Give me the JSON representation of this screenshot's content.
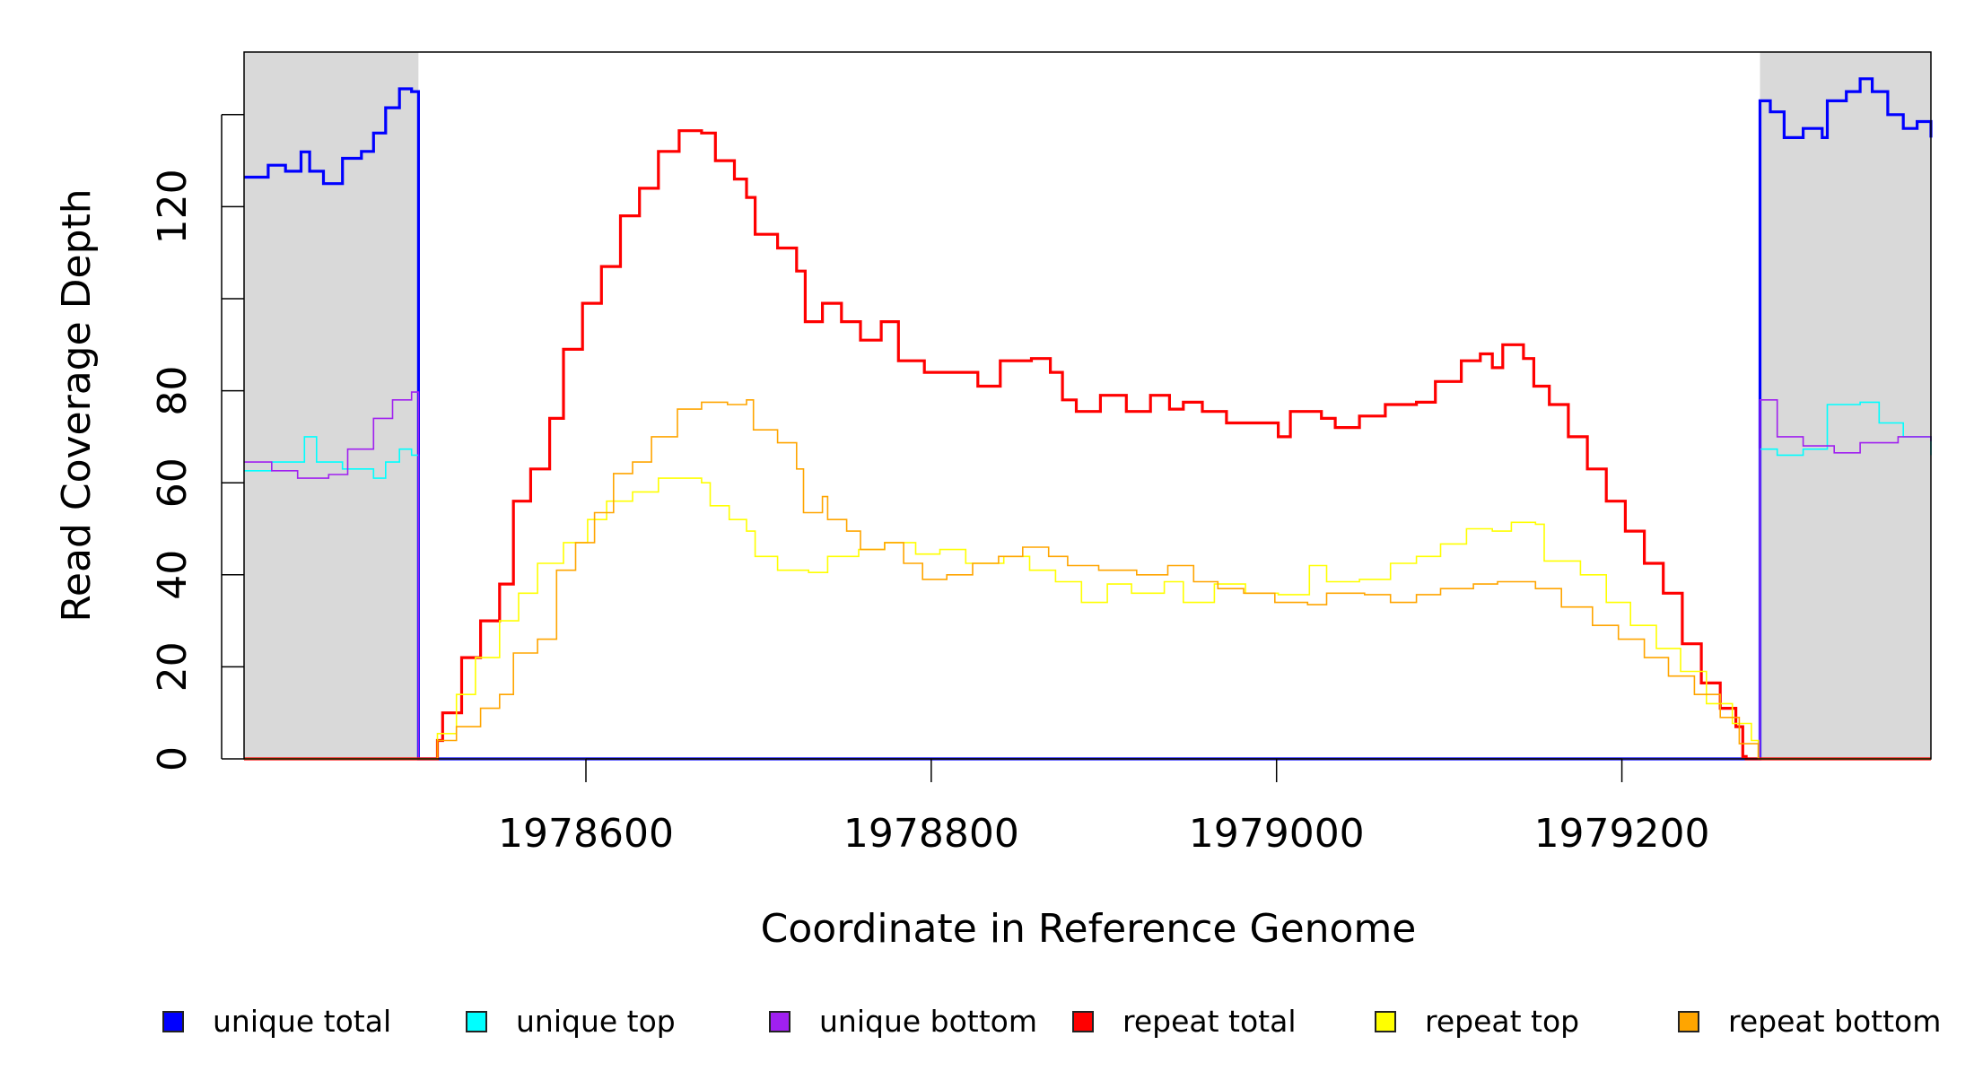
{
  "chart_data": {
    "type": "line",
    "title": "",
    "xlabel": "Coordinate in Reference Genome",
    "ylabel": "Read Coverage Depth",
    "xlim": [
      1978402,
      1979379
    ],
    "ylim": [
      0,
      153.6
    ],
    "xticks": [
      1978600,
      1978800,
      1979000,
      1979200
    ],
    "xtick_labels": [
      "1978600",
      "1978800",
      "1979000",
      "1979200"
    ],
    "yticks": [
      0,
      20,
      40,
      60,
      80,
      100,
      120,
      140
    ],
    "ytick_labels": [
      "0",
      "20",
      "40",
      "60",
      "80",
      "",
      "120",
      ""
    ],
    "grid": false,
    "legend_position": "bottom",
    "shaded_regions": [
      {
        "from": 1978402,
        "to": 1978503,
        "color": "#d9d9d9"
      },
      {
        "from": 1979280,
        "to": 1979379,
        "color": "#d9d9d9"
      }
    ],
    "series": [
      {
        "name": "unique total",
        "color": "#0000ff",
        "thick": true,
        "x": [
          1978402,
          1978411,
          1978416,
          1978426,
          1978435,
          1978440,
          1978448,
          1978459,
          1978470,
          1978477,
          1978484,
          1978492,
          1978499,
          1978503,
          1979280,
          1979280,
          1979286,
          1979294,
          1979305,
          1979316,
          1979319,
          1979330,
          1979338,
          1979345,
          1979354,
          1979363,
          1979371,
          1979379
        ],
        "y": [
          126.4,
          126.4,
          129,
          127.7,
          131.9,
          127.7,
          125,
          130.5,
          132,
          136,
          141.5,
          145.6,
          145,
          0,
          0,
          143,
          140.6,
          135,
          137,
          135,
          143,
          145,
          147.8,
          145,
          140,
          137,
          138.5,
          135
        ]
      },
      {
        "name": "unique top",
        "color": "#00ffff",
        "thick": false,
        "x": [
          1978402,
          1978418,
          1978437,
          1978444,
          1978459,
          1978477,
          1978484,
          1978492,
          1978499,
          1978503,
          1979280,
          1979280,
          1979290,
          1979305,
          1979319,
          1979338,
          1979349,
          1979363,
          1979379
        ],
        "y": [
          62.6,
          64.5,
          70,
          64.5,
          63,
          61,
          64.5,
          67.3,
          66,
          0,
          0,
          67.3,
          66,
          67.3,
          77,
          77.5,
          73,
          70,
          66
        ]
      },
      {
        "name": "unique bottom",
        "color": "#a020f0",
        "thick": false,
        "x": [
          1978402,
          1978418,
          1978433,
          1978451,
          1978462,
          1978477,
          1978488,
          1978499,
          1978503,
          1979280,
          1979280,
          1979290,
          1979305,
          1979323,
          1979338,
          1979360,
          1979379
        ],
        "y": [
          64.5,
          62.6,
          61,
          61.8,
          67.3,
          74,
          78,
          79.7,
          0,
          0,
          78,
          70,
          68,
          66.5,
          68.7,
          70,
          69
        ]
      },
      {
        "name": "repeat total",
        "color": "#ff0000",
        "thick": true,
        "x": [
          1978402,
          1978503,
          1978514,
          1978517,
          1978528,
          1978539,
          1978550,
          1978558,
          1978568,
          1978579,
          1978587,
          1978598,
          1978609,
          1978620,
          1978631,
          1978642,
          1978654,
          1978667,
          1978675,
          1978686,
          1978693,
          1978698,
          1978711,
          1978722,
          1978727,
          1978737,
          1978748,
          1978759,
          1978771,
          1978781,
          1978796,
          1978818,
          1978827,
          1978840,
          1978858,
          1978869,
          1978876,
          1978884,
          1978898,
          1978913,
          1978927,
          1978938,
          1978946,
          1978957,
          1978971,
          1978986,
          1979001,
          1979008,
          1979026,
          1979034,
          1979048,
          1979063,
          1979081,
          1979092,
          1979107,
          1979118,
          1979125,
          1979131,
          1979143,
          1979149,
          1979158,
          1979169,
          1979180,
          1979191,
          1979202,
          1979213,
          1979224,
          1979235,
          1979246,
          1979257,
          1979266,
          1979270,
          1979272,
          1979379
        ],
        "y": [
          0,
          0,
          4,
          10,
          22,
          30,
          38,
          56,
          63,
          74,
          89,
          99,
          107,
          118,
          124,
          132,
          136.5,
          136,
          130,
          126,
          122,
          114,
          111,
          106,
          95,
          99,
          95,
          91,
          95,
          86.5,
          84,
          84,
          81,
          86.5,
          87,
          84,
          78,
          75.5,
          79,
          75.5,
          79,
          76,
          77.5,
          75.5,
          73,
          73,
          70,
          75.5,
          74,
          72,
          74.5,
          77,
          77.5,
          82,
          86.5,
          88,
          85,
          90,
          87,
          81,
          77,
          70,
          63,
          56,
          49.5,
          42.5,
          36,
          25,
          16.5,
          11,
          7,
          0.5,
          0,
          0
        ]
      },
      {
        "name": "repeat top",
        "color": "#ffff00",
        "thick": false,
        "x": [
          1978402,
          1978503,
          1978514,
          1978525,
          1978536,
          1978550,
          1978561,
          1978572,
          1978587,
          1978601,
          1978612,
          1978627,
          1978642,
          1978667,
          1978672,
          1978683,
          1978693,
          1978698,
          1978711,
          1978729,
          1978740,
          1978758,
          1978773,
          1978791,
          1978805,
          1978820,
          1978842,
          1978857,
          1978872,
          1978887,
          1978902,
          1978916,
          1978935,
          1978946,
          1978964,
          1978982,
          1979001,
          1979019,
          1979029,
          1979048,
          1979066,
          1979081,
          1979095,
          1979110,
          1979125,
          1979136,
          1979150,
          1979155,
          1979176,
          1979191,
          1979205,
          1979220,
          1979234,
          1979249,
          1979264,
          1979275,
          1979279,
          1979379
        ],
        "y": [
          0,
          0,
          5.5,
          14,
          22,
          30,
          36,
          42.5,
          47,
          52,
          56,
          58,
          61,
          60,
          55,
          52,
          49.5,
          44,
          41,
          40.5,
          44,
          45.5,
          47,
          44.5,
          45.5,
          42.5,
          44,
          41,
          38.5,
          34,
          38,
          36,
          38.5,
          34,
          38,
          36,
          35.7,
          42,
          38.5,
          39,
          42.5,
          44,
          46.7,
          50,
          49.5,
          51.4,
          51,
          43,
          40,
          34,
          29,
          24,
          19,
          12,
          7.7,
          4,
          0,
          0
        ]
      },
      {
        "name": "repeat bottom",
        "color": "#ffa500",
        "thick": false,
        "x": [
          1978402,
          1978503,
          1978514,
          1978525,
          1978539,
          1978550,
          1978558,
          1978572,
          1978583,
          1978594,
          1978605,
          1978616,
          1978627,
          1978638,
          1978653,
          1978667,
          1978682,
          1978693,
          1978697,
          1978711,
          1978722,
          1978726,
          1978737,
          1978740,
          1978751,
          1978759,
          1978773,
          1978784,
          1978795,
          1978809,
          1978824,
          1978839,
          1978853,
          1978868,
          1978879,
          1978897,
          1978919,
          1978937,
          1978952,
          1978966,
          1978981,
          1978999,
          1979018,
          1979029,
          1979051,
          1979066,
          1979081,
          1979095,
          1979114,
          1979128,
          1979150,
          1979165,
          1979183,
          1979198,
          1979213,
          1979227,
          1979242,
          1979257,
          1979268,
          1979279,
          1979379
        ],
        "y": [
          0,
          0,
          4,
          7,
          11,
          14,
          23,
          26,
          41,
          47,
          53.5,
          62,
          64.5,
          70,
          76,
          77.5,
          77,
          78,
          71.5,
          68.7,
          63,
          53.5,
          57,
          52,
          49.5,
          45.5,
          47,
          42.5,
          39,
          40,
          42.5,
          44,
          46,
          44,
          42,
          41,
          40,
          42,
          38.5,
          37,
          36,
          34,
          33.5,
          36,
          35.7,
          34,
          35.7,
          37,
          38,
          38.5,
          37,
          33,
          29,
          26,
          22,
          18,
          14,
          9,
          3.3,
          0,
          0
        ]
      }
    ]
  }
}
